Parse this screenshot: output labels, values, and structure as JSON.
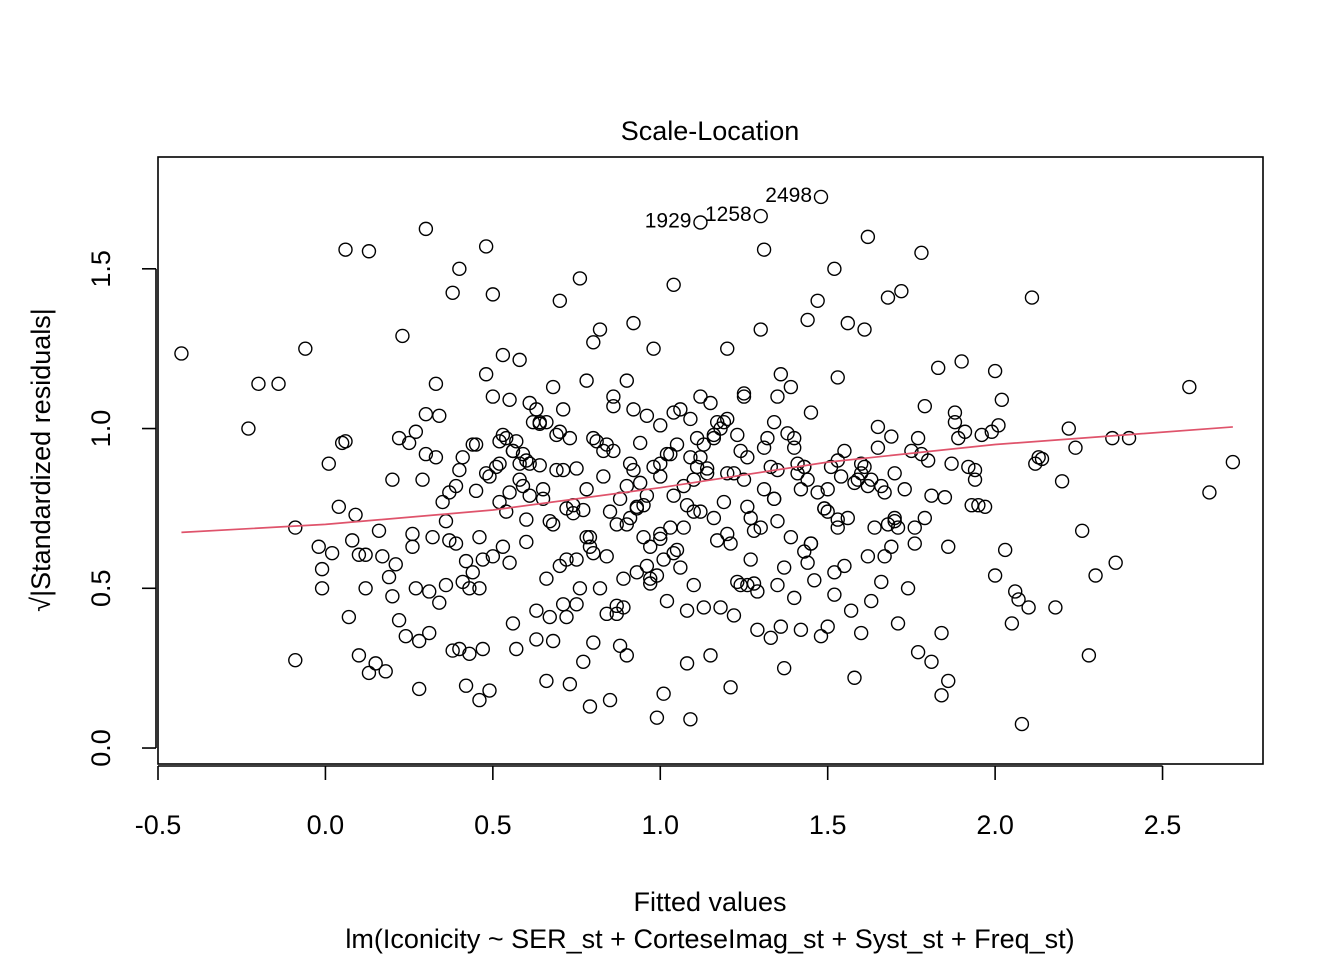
{
  "chart_data": {
    "type": "scatter",
    "title": "Scale-Location",
    "xlabel": "Fitted values",
    "subtitle": "lm(Iconicity ~ SER_st + CorteseImag_st + Syst_st + Freq_st)",
    "ylabel": "√|Standardized residuals|",
    "xlim": [
      -0.5,
      2.8
    ],
    "ylim": [
      -0.05,
      1.85
    ],
    "x_ticks": [
      -0.5,
      0.0,
      0.5,
      1.0,
      1.5,
      2.0,
      2.5
    ],
    "x_tick_labels": [
      "-0.5",
      "0.0",
      "0.5",
      "1.0",
      "1.5",
      "2.0",
      "2.5"
    ],
    "y_ticks": [
      0.0,
      0.5,
      1.0,
      1.5
    ],
    "y_tick_labels": [
      "0.0",
      "0.5",
      "1.0",
      "1.5"
    ],
    "grid": false,
    "smoother": {
      "color": "#DF536B",
      "points": [
        [
          -0.43,
          0.675
        ],
        [
          0.0,
          0.7
        ],
        [
          0.5,
          0.745
        ],
        [
          1.0,
          0.815
        ],
        [
          1.5,
          0.895
        ],
        [
          2.0,
          0.95
        ],
        [
          2.71,
          1.005
        ]
      ]
    },
    "labeled_points": [
      {
        "label": "1929",
        "x": 1.12,
        "y": 1.645
      },
      {
        "label": "1258",
        "x": 1.3,
        "y": 1.665
      },
      {
        "label": "2498",
        "x": 1.48,
        "y": 1.725
      }
    ],
    "points_x": [
      -0.43,
      -0.23,
      -0.2,
      -0.14,
      -0.09,
      -0.09,
      -0.06,
      -0.02,
      -0.01,
      -0.01,
      0.01,
      0.02,
      0.04,
      0.06,
      0.06,
      0.08,
      0.09,
      0.1,
      0.1,
      0.13,
      0.13,
      0.15,
      0.18,
      0.2,
      0.21,
      0.22,
      0.23,
      0.26,
      0.28,
      0.29,
      0.3,
      0.31,
      0.34,
      0.36,
      0.38,
      0.39,
      0.4,
      0.41,
      0.43,
      0.45,
      0.47,
      0.48,
      0.5,
      0.52,
      0.53,
      0.54,
      0.56,
      0.58,
      0.6,
      0.61,
      0.63,
      0.65,
      0.66,
      0.68,
      0.7,
      0.71,
      0.73,
      0.75,
      0.76,
      0.78,
      0.8,
      0.82,
      0.84,
      0.86,
      0.88,
      0.9,
      0.92,
      0.93,
      0.95,
      0.97,
      0.98,
      1.0,
      1.02,
      1.04,
      1.05,
      1.07,
      1.09,
      1.1,
      1.12,
      1.14,
      1.16,
      1.18,
      1.2,
      1.21,
      1.23,
      1.25,
      1.27,
      1.29,
      1.31,
      1.33,
      1.35,
      1.37,
      1.39,
      1.41,
      1.43,
      1.45,
      1.47,
      1.5,
      1.52,
      1.54,
      1.56,
      1.58,
      1.6,
      1.62,
      1.64,
      1.66,
      1.68,
      1.7,
      1.72,
      1.75,
      1.78,
      1.81,
      1.84,
      1.87,
      1.9,
      1.93,
      1.96,
      1.99,
      2.02,
      2.05,
      2.08,
      2.11,
      2.14,
      2.18,
      2.22,
      2.26,
      2.3,
      2.35,
      2.4,
      2.58,
      2.64,
      2.71,
      0.05,
      0.12,
      0.19,
      0.27,
      0.33,
      0.44,
      0.51,
      0.57,
      0.64,
      0.72,
      0.79,
      0.87,
      0.94,
      1.01,
      1.08,
      1.15,
      1.22,
      1.3,
      1.38,
      1.46,
      1.53,
      1.61,
      1.69,
      1.77,
      1.86,
      1.95,
      2.06,
      2.2,
      2.36,
      0.07,
      0.16,
      0.24,
      0.35,
      0.42,
      0.49,
      0.55,
      0.62,
      0.69,
      0.74,
      0.81,
      0.89,
      0.96,
      1.03,
      1.11,
      1.19,
      1.26,
      1.34,
      1.42,
      1.49,
      1.57,
      1.65,
      1.73,
      1.83,
      1.92,
      2.01,
      2.12,
      2.28,
      0.3,
      0.37,
      0.46,
      0.53,
      0.59,
      0.67,
      0.77,
      0.85,
      0.91,
      0.99,
      1.06,
      1.13,
      1.24,
      1.32,
      1.4,
      1.48,
      1.55,
      1.63,
      1.71,
      1.8,
      1.89,
      0.25,
      0.32,
      0.4,
      0.48,
      0.56,
      0.64,
      0.71,
      0.78,
      0.85,
      0.92,
      0.99,
      1.06,
      1.14,
      1.21,
      1.29,
      1.36,
      1.44,
      1.52,
      1.6,
      1.68,
      1.76,
      1.85,
      1.94,
      2.03,
      2.13,
      2.24,
      0.34,
      0.43,
      0.52,
      0.6,
      0.68,
      0.76,
      0.84,
      0.9,
      0.98,
      1.05,
      1.12,
      1.2,
      1.28,
      1.37,
      1.45,
      1.53,
      1.62,
      1.7,
      1.79,
      1.88,
      1.97,
      2.07,
      0.2,
      0.28,
      0.38,
      0.47,
      0.55,
      0.63,
      0.7,
      0.78,
      0.86,
      0.93,
      1.0,
      1.08,
      1.16,
      1.24,
      1.33,
      1.41,
      1.5,
      1.59,
      1.67,
      1.76,
      1.86,
      0.41,
      0.5,
      0.58,
      0.66,
      0.74,
      0.82,
      0.89,
      0.96,
      1.03,
      1.1,
      1.17,
      1.25,
      1.34,
      1.42,
      1.51,
      1.6,
      1.69,
      0.12,
      0.22,
      0.3,
      0.39,
      0.46,
      0.54,
      0.61,
      0.69,
      0.77,
      0.84,
      0.91,
      0.97,
      1.04,
      1.12,
      1.2,
      1.28,
      1.36,
      1.44,
      1.53,
      1.62,
      1.71,
      1.81,
      1.91,
      2.0,
      2.1,
      0.36,
      0.44,
      0.52,
      0.59,
      0.66,
      0.73,
      0.8,
      0.87,
      0.94,
      1.01,
      1.09,
      1.17,
      1.26,
      1.35,
      1.43,
      1.52,
      1.61,
      1.7,
      1.79,
      0.26,
      0.33,
      0.42,
      0.49,
      0.57,
      0.65,
      0.72,
      0.79,
      0.86,
      0.93,
      1.0,
      1.07,
      1.15,
      1.23,
      1.31,
      1.39,
      1.47,
      1.56,
      1.65,
      1.74,
      1.84,
      1.94,
      0.45,
      0.53,
      0.61,
      0.68,
      0.75,
      0.83,
      0.9,
      0.97,
      1.04,
      1.11,
      1.19,
      1.27,
      1.35,
      1.44,
      1.53,
      1.63,
      0.17,
      0.27,
      0.37,
      0.46,
      0.55,
      0.63,
      0.71,
      0.79,
      0.87,
      0.95,
      1.02,
      1.09,
      1.18,
      1.26,
      1.35,
      1.45,
      1.55,
      1.66,
      1.78,
      0.31,
      0.4,
      0.48,
      0.56,
      0.64,
      0.72,
      0.8,
      0.88,
      0.96,
      1.04,
      1.13,
      1.22,
      1.31,
      1.4,
      1.49,
      1.58,
      1.67,
      1.77,
      1.88,
      2.0,
      0.5,
      0.58,
      0.67,
      0.75,
      0.83,
      0.92,
      1.0,
      1.08,
      1.16,
      1.25,
      1.34,
      1.43,
      0.6,
      0.7,
      0.8,
      0.9,
      1.0,
      1.1,
      1.2,
      1.3,
      1.4,
      1.5
    ],
    "points_y": [
      1.235,
      1.0,
      1.14,
      1.14,
      0.69,
      0.275,
      1.25,
      0.63,
      0.56,
      0.5,
      0.89,
      0.61,
      0.755,
      0.96,
      1.56,
      0.65,
      0.73,
      0.605,
      0.29,
      1.555,
      0.235,
      0.265,
      0.24,
      0.84,
      0.575,
      0.4,
      1.29,
      0.63,
      0.185,
      0.84,
      1.625,
      0.49,
      0.455,
      0.51,
      1.425,
      0.64,
      1.5,
      0.91,
      0.295,
      0.805,
      0.31,
      0.86,
      1.42,
      0.96,
      0.63,
      0.97,
      0.39,
      1.215,
      0.715,
      0.79,
      0.43,
      0.81,
      0.21,
      0.7,
      1.4,
      1.06,
      0.2,
      0.875,
      1.47,
      0.81,
      0.33,
      1.31,
      0.6,
      0.93,
      0.78,
      0.29,
      1.33,
      0.755,
      0.66,
      0.515,
      1.25,
      0.85,
      0.92,
      1.45,
      0.62,
      0.82,
      0.09,
      0.51,
      1.1,
      0.86,
      0.72,
      0.44,
      1.25,
      0.19,
      0.98,
      0.84,
      0.72,
      0.37,
      1.56,
      0.345,
      1.1,
      0.25,
      1.13,
      0.89,
      0.615,
      1.05,
      1.4,
      0.38,
      1.5,
      0.85,
      1.33,
      0.22,
      0.86,
      1.6,
      0.69,
      0.52,
      1.41,
      0.72,
      1.43,
      0.93,
      1.55,
      0.79,
      0.165,
      0.89,
      1.21,
      0.76,
      0.98,
      0.99,
      1.09,
      0.39,
      0.075,
      1.41,
      0.905,
      0.44,
      1.0,
      0.68,
      0.54,
      0.97,
      0.97,
      1.13,
      0.8,
      0.895,
      0.955,
      0.5,
      0.535,
      0.5,
      1.14,
      0.55,
      0.88,
      0.31,
      1.015,
      0.59,
      0.13,
      0.445,
      0.955,
      0.17,
      0.43,
      0.29,
      0.415,
      1.31,
      0.985,
      0.525,
      0.715,
      1.31,
      0.975,
      0.3,
      0.63,
      0.76,
      0.49,
      0.835,
      0.58,
      0.41,
      0.68,
      0.35,
      0.77,
      0.195,
      0.18,
      0.8,
      1.02,
      0.98,
      0.735,
      0.96,
      0.53,
      0.57,
      0.69,
      0.88,
      1.02,
      0.755,
      0.78,
      0.37,
      0.75,
      0.43,
      1.005,
      0.81,
      1.19,
      0.88,
      1.01,
      0.89,
      0.29,
      1.045,
      0.8,
      0.15,
      1.23,
      0.92,
      0.41,
      0.745,
      0.15,
      0.72,
      0.095,
      1.06,
      0.44,
      0.51,
      0.97,
      0.47,
      0.35,
      0.93,
      0.84,
      0.39,
      0.9,
      0.97,
      0.955,
      0.66,
      0.31,
      1.57,
      0.93,
      0.885,
      0.45,
      0.66,
      0.74,
      1.06,
      0.54,
      0.565,
      0.875,
      0.64,
      0.49,
      1.17,
      0.84,
      0.55,
      0.36,
      0.7,
      0.64,
      0.785,
      0.84,
      0.62,
      0.91,
      0.94,
      1.04,
      0.5,
      0.77,
      0.645,
      0.335,
      0.5,
      0.42,
      1.15,
      0.88,
      0.95,
      0.91,
      1.03,
      0.68,
      0.565,
      0.64,
      1.16,
      0.6,
      0.86,
      0.72,
      1.02,
      0.755,
      0.465,
      0.475,
      0.335,
      0.305,
      0.59,
      0.58,
      1.06,
      0.99,
      1.15,
      1.1,
      0.75,
      0.655,
      0.265,
      0.98,
      0.93,
      0.88,
      0.86,
      0.74,
      0.84,
      0.8,
      0.69,
      0.21,
      0.52,
      0.6,
      0.89,
      0.53,
      0.76,
      0.5,
      0.44,
      0.79,
      0.92,
      0.84,
      1.02,
      1.1,
      1.02,
      0.81,
      0.88,
      0.89,
      0.63,
      0.605,
      0.97,
      0.92,
      0.82,
      0.66,
      0.74,
      0.89,
      0.87,
      0.27,
      0.95,
      0.89,
      0.63,
      1.05,
      0.74,
      0.67,
      0.515,
      0.38,
      1.34,
      0.9,
      0.82,
      0.69,
      0.27,
      0.99,
      0.54,
      0.44,
      0.71,
      0.95,
      0.89,
      0.82,
      1.02,
      0.97,
      0.61,
      0.7,
      0.83,
      0.59,
      1.03,
      0.65,
      0.91,
      0.51,
      0.88,
      0.48,
      0.88,
      0.71,
      1.07,
      0.67,
      0.91,
      0.585,
      0.85,
      0.96,
      0.78,
      0.41,
      0.63,
      1.07,
      0.55,
      0.89,
      0.69,
      1.08,
      0.52,
      0.94,
      0.66,
      0.8,
      0.72,
      0.94,
      0.5,
      0.36,
      0.87,
      0.95,
      0.98,
      1.08,
      1.13,
      0.45,
      0.85,
      0.7,
      0.53,
      0.61,
      0.97,
      0.77,
      0.59,
      0.87,
      0.58,
      0.69,
      0.46,
      0.6,
      0.99,
      0.65,
      0.5,
      1.09,
      0.34,
      0.87,
      0.66,
      0.42,
      0.76,
      0.46,
      0.91,
      1.0,
      0.51,
      0.71,
      0.64,
      0.57,
      0.82,
      0.92,
      0.36,
      0.87,
      1.17,
      0.93,
      1.02,
      0.75,
      1.27,
      0.32,
      1.04,
      0.79,
      0.95,
      0.86,
      0.81,
      0.94,
      0.75,
      0.83,
      0.6,
      0.97,
      1.05,
      1.18,
      1.1,
      0.84,
      0.71,
      0.59,
      0.93,
      0.87,
      1.01,
      0.76,
      0.97,
      1.11,
      0.78,
      0.88,
      0.9,
      0.57,
      0.97,
      0.82,
      0.67,
      0.74,
      0.86,
      0.69,
      0.97,
      0.81,
      0.92,
      1.08,
      0.58,
      0.7,
      0.84,
      0.95,
      0.89,
      0.82,
      0.99,
      0.93,
      0.88,
      1.02,
      0.77,
      0.95,
      0.86,
      0.91
    ]
  }
}
